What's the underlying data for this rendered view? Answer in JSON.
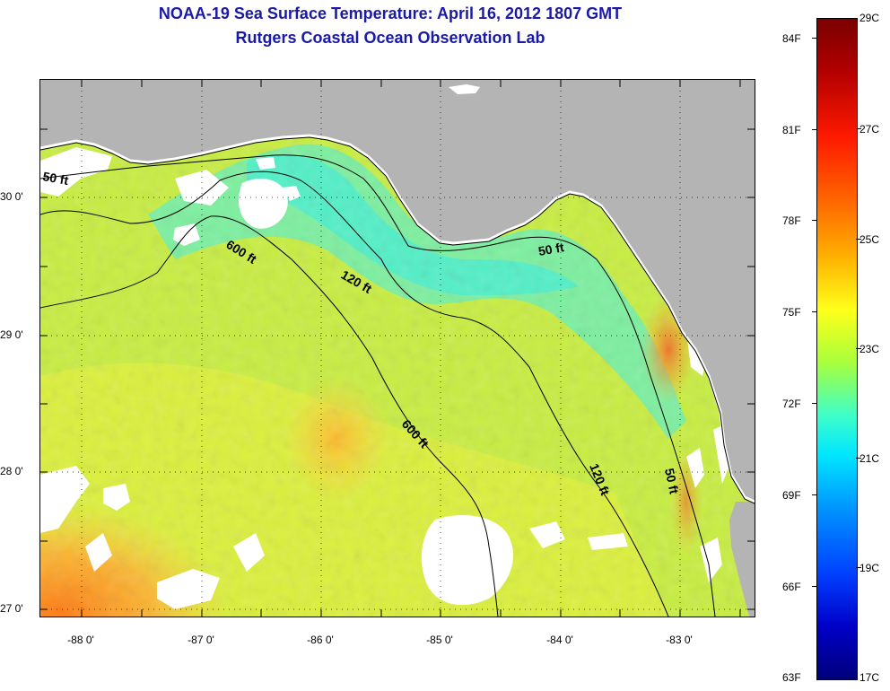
{
  "header": {
    "title": "NOAA-19 Sea Surface Temperature:  April 16, 2012 1807 GMT",
    "subtitle": "Rutgers Coastal Ocean Observation Lab"
  },
  "map": {
    "latitude_labels": [
      "30 0'",
      "29 0'",
      "28 0'",
      "27 0'"
    ],
    "longitude_labels": [
      "-88 0'",
      "-87 0'",
      "-86 0'",
      "-85 0'",
      "-84 0'",
      "-83 0'"
    ],
    "contour_labels": [
      "50 ft",
      "600 ft",
      "120 ft",
      "50 ft",
      "600 ft",
      "120 ft",
      "50 ft"
    ],
    "colors": {
      "land": "#b4b4b4",
      "cloud": "#ffffff",
      "frame": "#000000"
    }
  },
  "colorbar": {
    "fahrenheit_labels": [
      "84F",
      "81F",
      "78F",
      "75F",
      "72F",
      "69F",
      "66F",
      "63F"
    ],
    "celsius_labels": [
      "29C",
      "27C",
      "25C",
      "23C",
      "21C",
      "19C",
      "17C"
    ],
    "range_f": [
      63,
      85
    ],
    "range_c": [
      17,
      29
    ]
  }
}
